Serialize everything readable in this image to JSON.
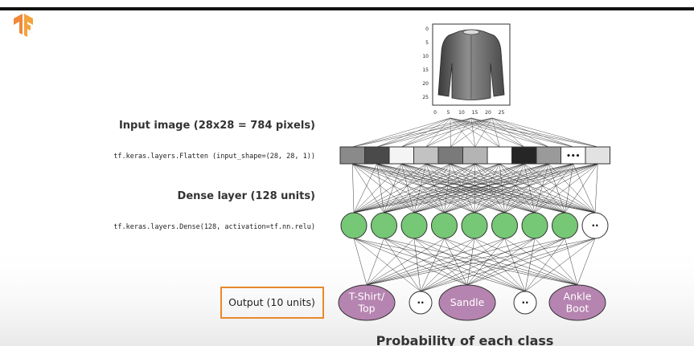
{
  "colors": {
    "accent_orange": "#e8892c",
    "neuron_green": "#76c776",
    "output_purple": "#b684b0",
    "ellipsis_blue": "#3b3f8f"
  },
  "logo": {
    "icon": "tensorflow-logo-icon"
  },
  "labels": {
    "input_image": "Input image (28x28 = 784 pixels)",
    "flatten_code": "tf.keras.layers.Flatten (input_shape=(28, 28, 1))",
    "dense_layer": "Dense layer (128 units)",
    "dense_code": "tf.keras.layers.Dense(128, activation=tf.nn.relu)",
    "output_units": "Output (10 units)",
    "probability": "Probability of each class"
  },
  "image_axes": {
    "y_ticks": [
      "0",
      "5",
      "10",
      "15",
      "20",
      "25"
    ],
    "x_ticks": [
      "0",
      "5",
      "10",
      "15",
      "20",
      "25"
    ]
  },
  "flatten_cells": {
    "shades": [
      "#8a8a8a",
      "#4a4a4a",
      "#f4f4f4",
      "#c2c2c2",
      "#7a7a7a",
      "#b4b4b4",
      "#ffffff",
      "#262626",
      "#9a9a9a",
      "",
      "#e2e2e2"
    ],
    "ellipsis": "•••"
  },
  "dense_nodes": {
    "count": 8,
    "ellipsis": "··"
  },
  "output_nodes": [
    {
      "label": "T-Shirt/ Top",
      "lines": [
        "T-Shirt/",
        "Top"
      ],
      "kind": "class"
    },
    {
      "label": "··",
      "kind": "ellipsis"
    },
    {
      "label": "Sandle",
      "lines": [
        "Sandle"
      ],
      "kind": "class"
    },
    {
      "label": "··",
      "kind": "ellipsis"
    },
    {
      "label": "Ankle Boot",
      "lines": [
        "Ankle",
        "Boot"
      ],
      "kind": "class"
    }
  ]
}
